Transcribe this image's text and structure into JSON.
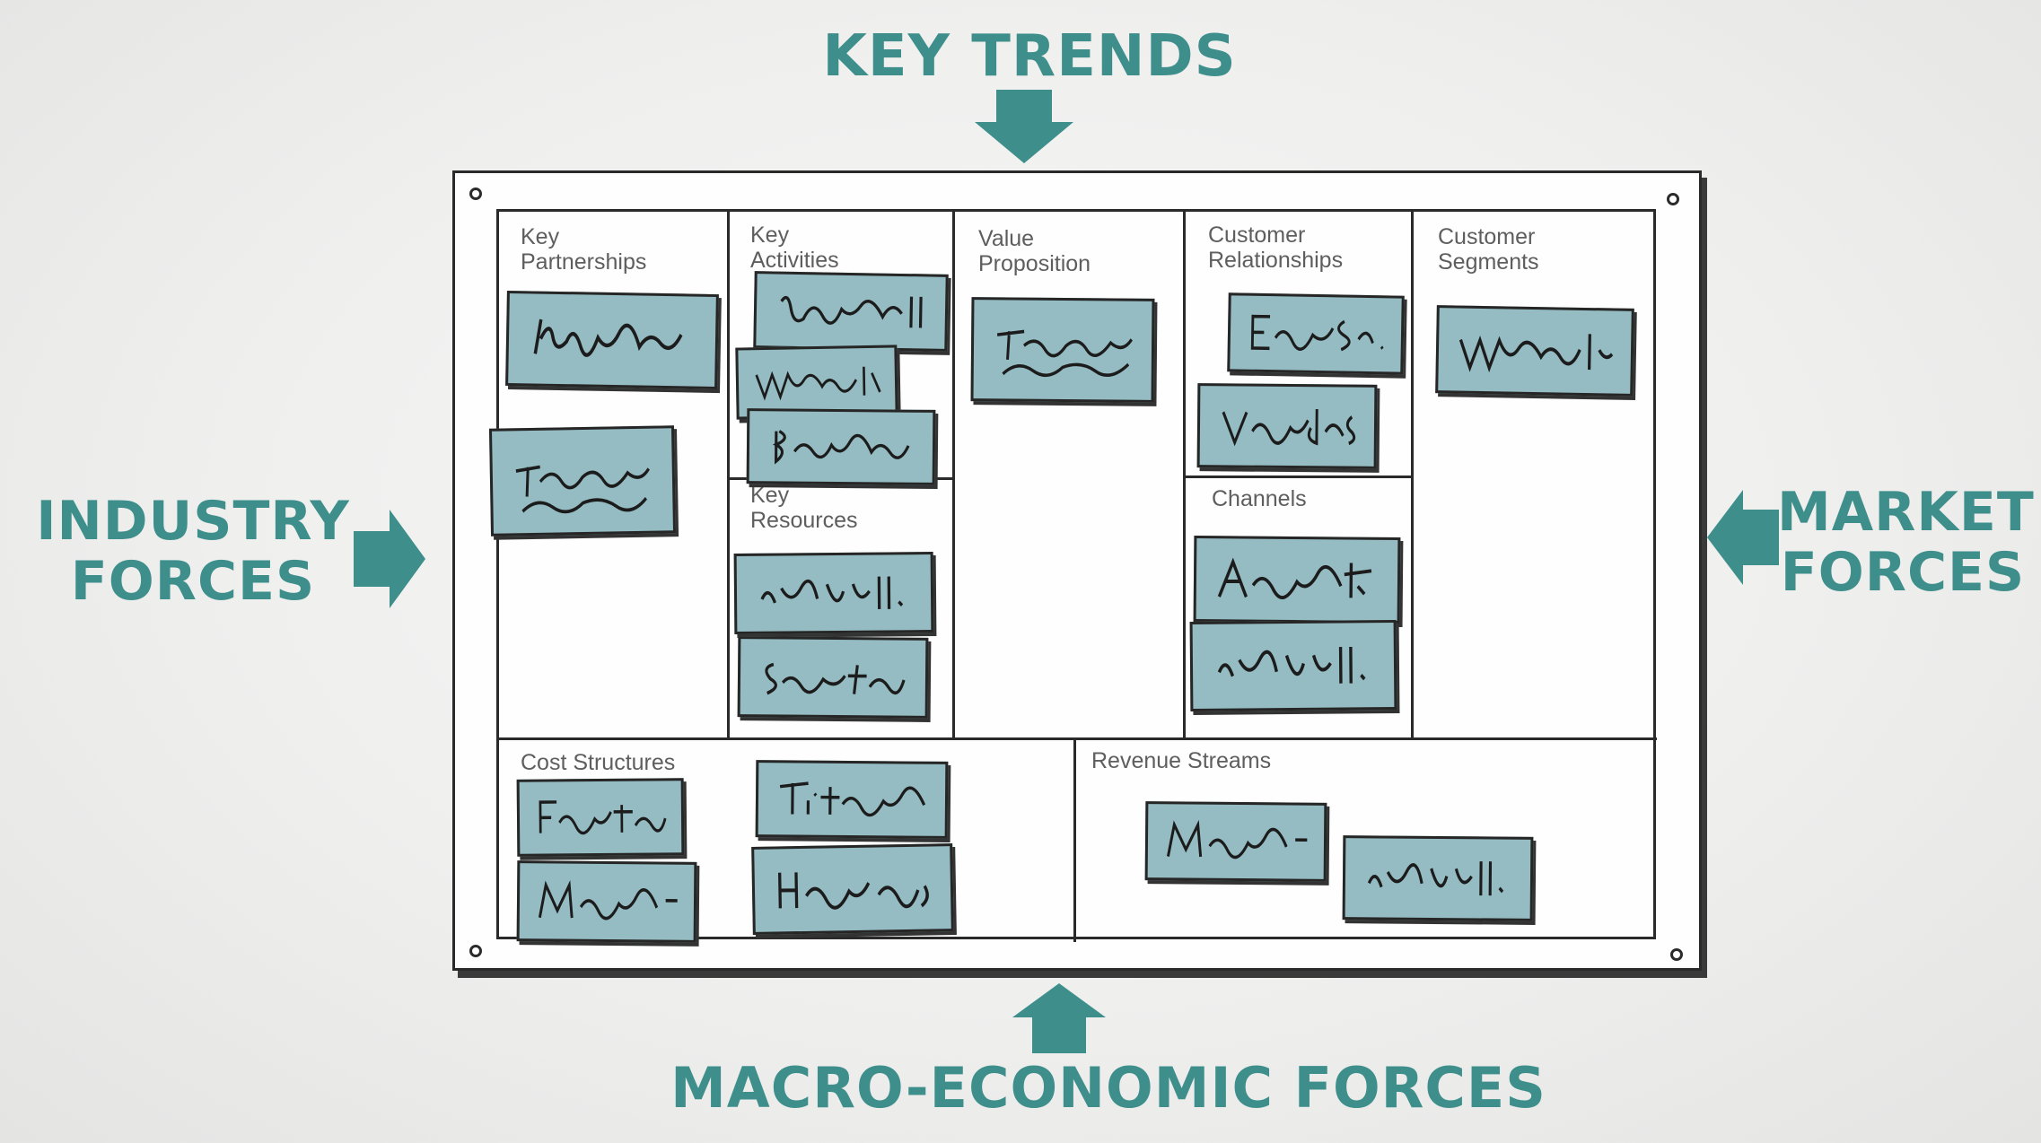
{
  "forces": {
    "key_trends": "KEY TRENDS",
    "industry_line1": "INDUSTRY",
    "industry_line2": "FORCES",
    "market_line1": "MARKET",
    "market_line2": "FORCES",
    "macro": "MACRO-ECONOMIC FORCES"
  },
  "canvas": {
    "key_partnerships": {
      "line1": "Key",
      "line2": "Partnerships"
    },
    "key_activities": {
      "line1": "Key",
      "line2": "Activities"
    },
    "key_resources": {
      "line1": "Key",
      "line2": "Resources"
    },
    "value_proposition": {
      "line1": "Value",
      "line2": "Proposition"
    },
    "customer_relationships": {
      "line1": "Customer",
      "line2": "Relationships"
    },
    "channels": "Channels",
    "customer_segments": {
      "line1": "Customer",
      "line2": "Segments"
    },
    "cost_structures": "Cost Structures",
    "revenue_streams": "Revenue Streams"
  },
  "colors": {
    "accent": "#3e8f8c",
    "sticky": "#94bcc2",
    "ink": "#2a2a2a"
  },
  "icons": [
    "arrow-down-icon",
    "arrow-right-icon",
    "arrow-left-icon",
    "arrow-up-icon",
    "pin-icon",
    "scribble-icon"
  ]
}
